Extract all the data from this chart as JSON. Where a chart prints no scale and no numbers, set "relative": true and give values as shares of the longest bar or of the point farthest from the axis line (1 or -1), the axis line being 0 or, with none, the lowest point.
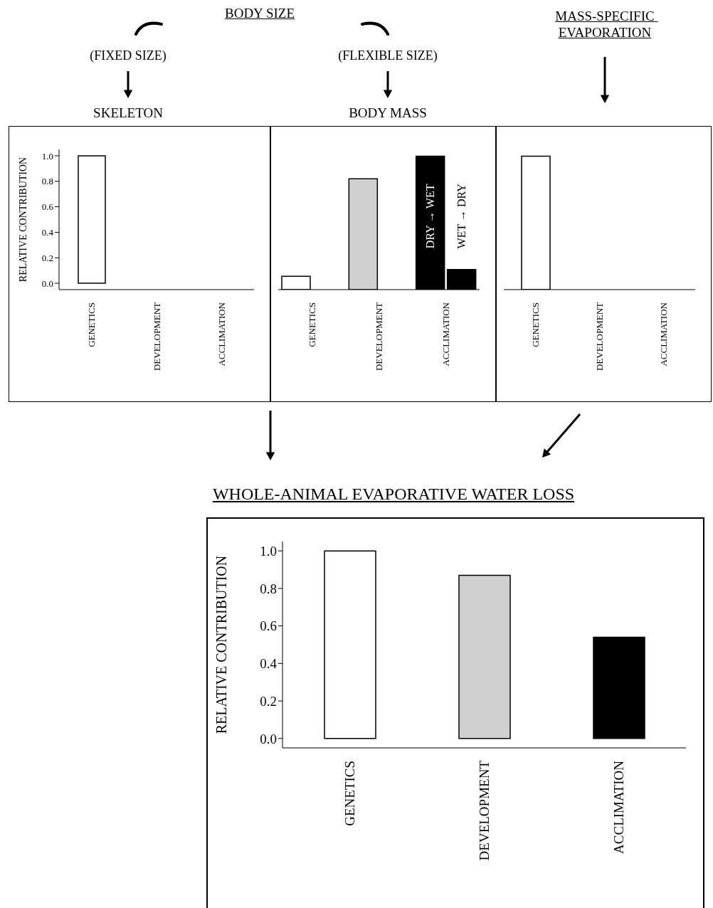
{
  "chart_data": [
    {
      "type": "bar",
      "title": "SKELETON",
      "subtitle": "(FIXED SIZE)",
      "annotations": [
        "BODY SIZE"
      ],
      "ylabel": "RELATIVE CONTRIBUTION",
      "categories": [
        "GENETICS",
        "DEVELOPMENT",
        "ACCLIMATION"
      ],
      "values": [
        1.0,
        0,
        0
      ],
      "colors": [
        "#ffffff",
        "#d0d0d0",
        "#000000"
      ],
      "ylim": [
        -0.05,
        1.05
      ],
      "yticks": [
        {
          "value": 0,
          "label": "0.0"
        },
        {
          "value": 0.2,
          "label": "0.2"
        },
        {
          "value": 0.4,
          "label": "0.4"
        },
        {
          "value": 0.6,
          "label": "0.6"
        },
        {
          "value": 0.8,
          "label": "0.8"
        },
        {
          "value": 1,
          "label": "1.0"
        }
      ]
    },
    {
      "type": "bar",
      "title": "BODY MASS",
      "subtitle": "(FLEXIBLE SIZE)",
      "relative": true,
      "categories": [
        "GENETICS",
        "DEVELOPMENT",
        "ACCLIMATION"
      ],
      "series": [
        {
          "colors": [
            "#ffffff",
            "#d0d0d0",
            "#000000"
          ],
          "values": [
            0.1,
            0.83,
            1.0
          ]
        },
        {
          "color": "#000000",
          "values": [
            null,
            null,
            0.15
          ]
        }
      ],
      "annotations": [
        {
          "text": "DRY → WET",
          "x": "ACCLIMATION",
          "y": 0.55
        },
        {
          "text": "WET → DRY",
          "x": "ACCLIMATION",
          "y": 0.55
        }
      ]
    },
    {
      "type": "bar",
      "title": "MASS-SPECIFIC EVAPORATION",
      "relative": true,
      "categories": [
        "GENETICS",
        "DEVELOPMENT",
        "ACCLIMATION"
      ],
      "values": [
        1.0,
        0,
        0
      ],
      "colors": [
        "#ffffff",
        "#d0d0d0",
        "#000000"
      ]
    },
    {
      "type": "bar",
      "title": "WHOLE-ANIMAL EVAPORATIVE WATER LOSS",
      "ylabel": "RELATIVE CONTRIBUTION",
      "categories": [
        "GENETICS",
        "DEVELOPMENT",
        "ACCLIMATION"
      ],
      "values": [
        1.0,
        0.87,
        0.54
      ],
      "colors": [
        "#ffffff",
        "#d0d0d0",
        "#000000"
      ],
      "ylim": [
        -0.05,
        1.05
      ],
      "yticks": [
        {
          "value": 0,
          "label": "0.0"
        },
        {
          "value": 0.2,
          "label": "0.2"
        },
        {
          "value": 0.4,
          "label": "0.4"
        },
        {
          "value": 0.6,
          "label": "0.6"
        },
        {
          "value": 0.8,
          "label": "0.8"
        },
        {
          "value": 1,
          "label": "1.0"
        }
      ]
    }
  ]
}
